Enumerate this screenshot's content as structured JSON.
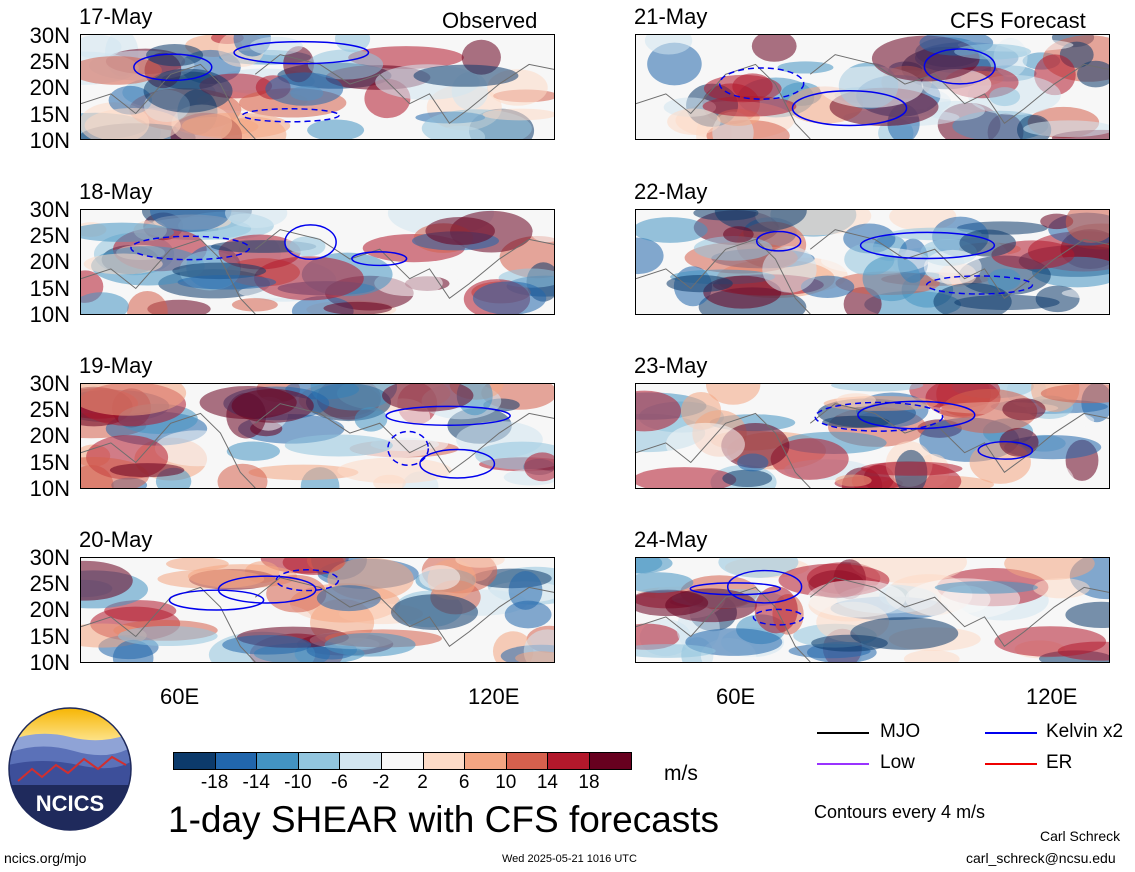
{
  "panels_left": [
    {
      "date": "17-May",
      "tag": "Observed"
    },
    {
      "date": "18-May",
      "tag": ""
    },
    {
      "date": "19-May",
      "tag": ""
    },
    {
      "date": "20-May",
      "tag": ""
    }
  ],
  "panels_right": [
    {
      "date": "21-May",
      "tag": "CFS Forecast"
    },
    {
      "date": "22-May",
      "tag": ""
    },
    {
      "date": "23-May",
      "tag": ""
    },
    {
      "date": "24-May",
      "tag": ""
    }
  ],
  "y_ticks": [
    "30N",
    "25N",
    "20N",
    "15N",
    "10N"
  ],
  "x_ticks": [
    "60E",
    "120E"
  ],
  "colorbar": {
    "labels": [
      "-18",
      "-14",
      "-10",
      "-6",
      "-2",
      "2",
      "6",
      "10",
      "14",
      "18"
    ],
    "unit": "m/s",
    "colors": [
      "#0c3a6b",
      "#2166ac",
      "#4393c3",
      "#92c5de",
      "#d1e5f0",
      "#f7f7f7",
      "#fddbc7",
      "#f4a582",
      "#d6604d",
      "#b2182b",
      "#67001f"
    ]
  },
  "legend": {
    "mjo": "MJO",
    "kelvin": "Kelvin x2",
    "low": "Low",
    "er": "ER",
    "contours": "Contours every 4 m/s",
    "colors": {
      "mjo": "#000000",
      "kelvin": "#0000ee",
      "low": "#9933ff",
      "er": "#ee0000"
    }
  },
  "title": "1-day SHEAR with CFS forecasts",
  "logo_text": "NCICS",
  "footer": {
    "left": "ncics.org/mjo",
    "center": "Wed 2025-05-21 1016 UTC",
    "author": "Carl Schreck",
    "email": "carl_schreck@ncsu.edu"
  }
}
